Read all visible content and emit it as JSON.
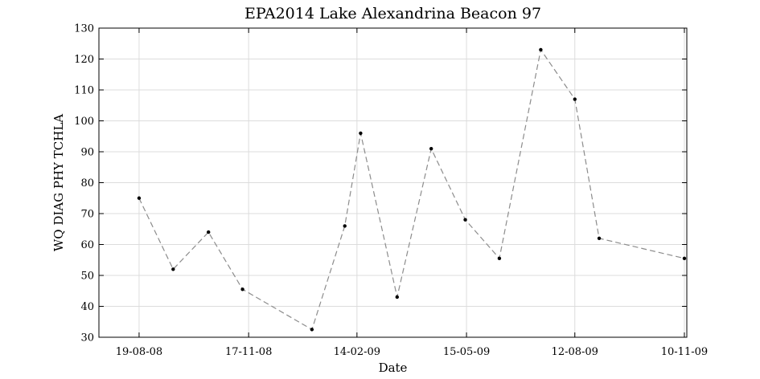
{
  "chart_data": {
    "type": "line",
    "title": "EPA2014 Lake Alexandrina Beacon 97",
    "xlabel": "Date",
    "ylabel": "WQ DIAG PHY TCHLA",
    "ylim": [
      30,
      130
    ],
    "yticks": [
      30,
      40,
      50,
      60,
      70,
      80,
      90,
      100,
      110,
      120,
      130
    ],
    "xlim": [
      "2008-07-17",
      "2009-11-12"
    ],
    "xticks": [
      {
        "date": "2008-08-19",
        "label": "19-08-08"
      },
      {
        "date": "2008-11-17",
        "label": "17-11-08"
      },
      {
        "date": "2009-02-14",
        "label": "14-02-09"
      },
      {
        "date": "2009-05-15",
        "label": "15-05-09"
      },
      {
        "date": "2009-08-12",
        "label": "12-08-09"
      },
      {
        "date": "2009-11-10",
        "label": "10-11-09"
      }
    ],
    "grid": true,
    "line_style": "dashed",
    "line_color": "#8c8c8c",
    "marker_color": "#000000",
    "series": [
      {
        "x": [
          "2008-08-19",
          "2008-09-16",
          "2008-10-15",
          "2008-11-12",
          "2009-01-08",
          "2009-02-04",
          "2009-02-17",
          "2009-03-19",
          "2009-04-16",
          "2009-05-14",
          "2009-06-11",
          "2009-07-15",
          "2009-08-12",
          "2009-09-01",
          "2009-11-10"
        ],
        "y": [
          75,
          52,
          64,
          45.5,
          32.5,
          66,
          96,
          43,
          91,
          68,
          55.5,
          123,
          107,
          62,
          55.5
        ]
      }
    ]
  }
}
